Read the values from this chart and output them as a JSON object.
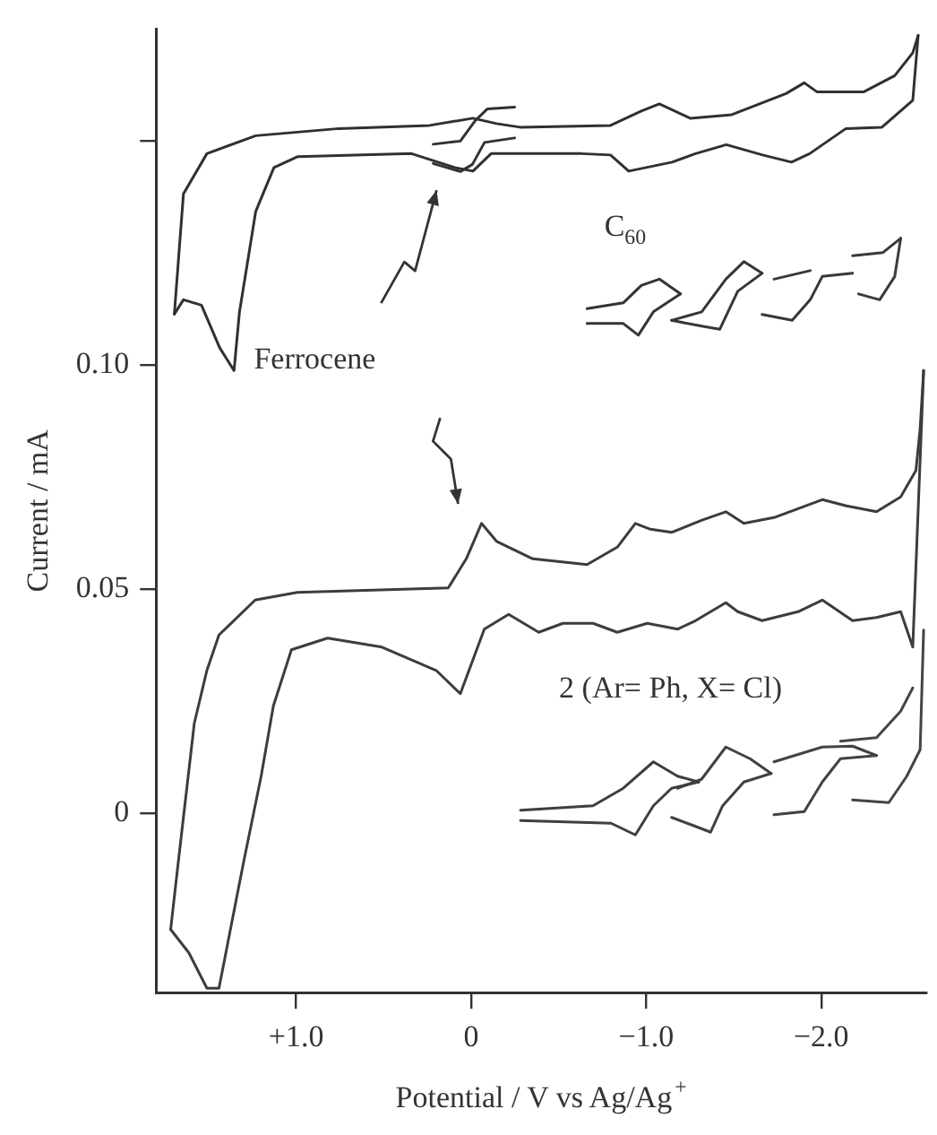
{
  "chart_data": {
    "type": "line",
    "xlabel": "Potential / V vs Ag/Ag$^{+}$",
    "ylabel": "Current / mA",
    "xlim": [
      1.8,
      -2.6
    ],
    "ylim": [
      -0.04,
      0.175
    ],
    "xticks": [
      {
        "value": 1,
        "label": "+1.0"
      },
      0,
      {
        "value": -1,
        "label": "−1.0"
      },
      {
        "value": -2,
        "label": "−2.0"
      }
    ],
    "yticks": [
      0,
      {
        "value": 0.05,
        "label": "0.05"
      },
      {
        "value": 0.1,
        "label": "0.10"
      },
      {
        "value": 0.15,
        "label": null
      }
    ],
    "grid": false,
    "legend": false,
    "marker": "none",
    "line_style": "solid",
    "annotations": [
      "Ferrocene",
      "C$_{60}$",
      "2 (Ar= Ph, X= Cl)"
    ],
    "series": [
      {
        "color": "#303030",
        "x": [
          1.696,
          1.644,
          1.51,
          1.231,
          0.755,
          0.238,
          -0.01,
          -0.145,
          -0.279,
          -0.796,
          -0.972,
          -1.075,
          -1.251,
          -1.489,
          -1.799,
          -1.903,
          -1.975,
          -2.244,
          -2.42,
          -2.523,
          -2.554
        ],
        "values": [
          0.1114,
          0.1382,
          0.1472,
          0.1512,
          0.1528,
          0.1535,
          0.1551,
          0.1539,
          0.1531,
          0.1535,
          0.1567,
          0.1583,
          0.1551,
          0.1559,
          0.1606,
          0.163,
          0.161,
          0.161,
          0.1646,
          0.1697,
          0.1736
        ]
      },
      {
        "color": "#313131",
        "x": [
          -2.554,
          -2.523,
          -2.347,
          -2.141,
          -1.934,
          -1.83,
          -1.665,
          -1.458,
          -1.282,
          -1.148,
          -0.9,
          -0.796,
          -0.631,
          -0.114,
          -0.01,
          0.093,
          0.341,
          0.993,
          1.127,
          1.231,
          1.324,
          1.355,
          1.437,
          1.541,
          1.644,
          1.696
        ],
        "values": [
          0.1736,
          0.1591,
          0.1531,
          0.1528,
          0.1472,
          0.1453,
          0.1469,
          0.1492,
          0.1472,
          0.1453,
          0.1433,
          0.1469,
          0.1472,
          0.1472,
          0.1433,
          0.1441,
          0.1472,
          0.1465,
          0.1441,
          0.1343,
          0.1118,
          0.0988,
          0.1039,
          0.1134,
          0.1146,
          0.1114
        ]
      },
      {
        "color": "#323232",
        "x": [
          0.217,
          0.062,
          -0.024,
          -0.093,
          -0.248
        ],
        "values": [
          0.1493,
          0.15,
          0.1546,
          0.1572,
          0.1576
        ]
      },
      {
        "color": "#333333",
        "x": [
          0.217,
          0.062,
          -0.007,
          -0.076,
          -0.248
        ],
        "values": [
          0.145,
          0.1432,
          0.1448,
          0.1497,
          0.1507
        ]
      },
      {
        "color": "#343434",
        "x": [
          -0.662,
          -0.869,
          -0.972,
          -1.075,
          -1.196
        ],
        "values": [
          0.1126,
          0.1139,
          0.1178,
          0.1192,
          0.1159
        ]
      },
      {
        "color": "#353535",
        "x": [
          -1.196,
          -1.041,
          -0.955,
          -0.869,
          -0.662
        ],
        "values": [
          0.1159,
          0.1119,
          0.1067,
          0.1093,
          0.1093
        ]
      },
      {
        "color": "#363636",
        "x": [
          -1.145,
          -1.317,
          -1.455,
          -1.558,
          -1.662
        ],
        "values": [
          0.11,
          0.1119,
          0.1192,
          0.1231,
          0.1205
        ]
      },
      {
        "color": "#373737",
        "x": [
          -1.662,
          -1.523,
          -1.42,
          -1.317,
          -1.145
        ],
        "values": [
          0.1205,
          0.1165,
          0.108,
          0.1087,
          0.11
        ]
      },
      {
        "color": "#383838",
        "x": [
          -1.662,
          -1.834,
          -1.937,
          -2.006,
          -2.179
        ],
        "values": [
          0.1113,
          0.11,
          0.1146,
          0.1198,
          0.1205
        ]
      },
      {
        "color": "#393939",
        "x": [
          -1.73,
          -1.937
        ],
        "values": [
          0.1192,
          0.1211
        ]
      },
      {
        "color": "#3a3a3a",
        "x": [
          -2.179,
          -2.351,
          -2.454
        ],
        "values": [
          0.1244,
          0.1251,
          0.1283
        ]
      },
      {
        "color": "#3b3b3b",
        "x": [
          -2.454,
          -2.42,
          -2.334,
          -2.213
        ],
        "values": [
          0.1283,
          0.1198,
          0.1146,
          0.1159
        ]
      },
      {
        "color": "#3c3c3c",
        "x": [
          1.717,
          1.675,
          1.582,
          1.51,
          1.441,
          1.234,
          0.993,
          0.131,
          0.028,
          -0.059,
          -0.145,
          -0.352,
          -0.662,
          -0.835,
          -0.938,
          -1.024,
          -1.145,
          -1.316,
          -1.455,
          -1.558,
          -1.73,
          -2.006,
          -2.144,
          -2.316,
          -2.454,
          -2.541,
          -2.565,
          -2.585
        ],
        "values": [
          -0.0259,
          -0.0114,
          0.0201,
          0.0319,
          0.0398,
          0.0476,
          0.0493,
          0.0503,
          0.0568,
          0.0647,
          0.0607,
          0.0568,
          0.0555,
          0.0594,
          0.0647,
          0.0634,
          0.0627,
          0.0654,
          0.0673,
          0.0647,
          0.066,
          0.07,
          0.0686,
          0.0673,
          0.0706,
          0.0765,
          0.0858,
          0.0988
        ]
      },
      {
        "color": "#3d3d3d",
        "x": [
          -2.585,
          -2.523,
          -2.454,
          -2.316,
          -2.179,
          -2.006,
          -1.868,
          -1.662,
          -1.523,
          -1.455,
          -1.282,
          -1.179,
          -1.006,
          -0.835,
          -0.696,
          -0.524,
          -0.386,
          -0.214,
          -0.075,
          0.062,
          0.2,
          0.51,
          0.82,
          1.027,
          1.13,
          1.2,
          1.303,
          1.441,
          1.51,
          1.613,
          1.717
        ],
        "values": [
          0.0988,
          0.0371,
          0.045,
          0.0437,
          0.043,
          0.0476,
          0.045,
          0.043,
          0.045,
          0.047,
          0.043,
          0.0411,
          0.0424,
          0.0404,
          0.0424,
          0.0424,
          0.0404,
          0.0444,
          0.0411,
          0.0267,
          0.0319,
          0.0371,
          0.0391,
          0.0365,
          0.024,
          0.0083,
          -0.0114,
          -0.039,
          -0.039,
          -0.0311,
          -0.0259
        ]
      },
      {
        "color": "#3e3e3e",
        "x": [
          -0.282,
          -0.696,
          -0.869,
          -1.041,
          -1.179,
          -1.3
        ],
        "values": [
          0.0007,
          0.0017,
          0.0056,
          0.0115,
          0.0083,
          0.007
        ]
      },
      {
        "color": "#3f3f3f",
        "x": [
          -1.3,
          -1.145,
          -1.041,
          -0.938,
          -0.799,
          -0.282
        ],
        "values": [
          0.007,
          0.0056,
          0.0017,
          -0.0048,
          -0.0022,
          -0.0016
        ]
      },
      {
        "color": "#404040",
        "x": [
          -1.145,
          -1.282,
          -1.368,
          -1.437,
          -1.558,
          -1.714
        ],
        "values": [
          -0.0009,
          -0.0029,
          -0.0042,
          0.0017,
          0.007,
          0.0089
        ]
      },
      {
        "color": "#414141",
        "x": [
          -1.714,
          -1.593,
          -1.455,
          -1.316,
          -1.179
        ],
        "values": [
          0.0089,
          0.0122,
          0.0148,
          0.0076,
          0.0056
        ]
      },
      {
        "color": "#424242",
        "x": [
          -1.73,
          -1.903,
          -2.006,
          -2.11,
          -2.316
        ],
        "values": [
          -0.0003,
          0.0004,
          0.007,
          0.0122,
          0.0129
        ]
      },
      {
        "color": "#434343",
        "x": [
          -2.316,
          -2.179,
          -2.006,
          -1.73
        ],
        "values": [
          0.0129,
          0.015,
          0.0148,
          0.0115
        ]
      },
      {
        "color": "#444444",
        "x": [
          -2.179,
          -2.386,
          -2.489,
          -2.565,
          -2.585
        ],
        "values": [
          0.003,
          0.0024,
          0.0083,
          0.0142,
          0.0409
        ]
      },
      {
        "color": "#454545",
        "x": [
          -2.11,
          -2.316,
          -2.454,
          -2.523
        ],
        "values": [
          0.0161,
          0.0169,
          0.0228,
          0.028
        ]
      }
    ]
  }
}
